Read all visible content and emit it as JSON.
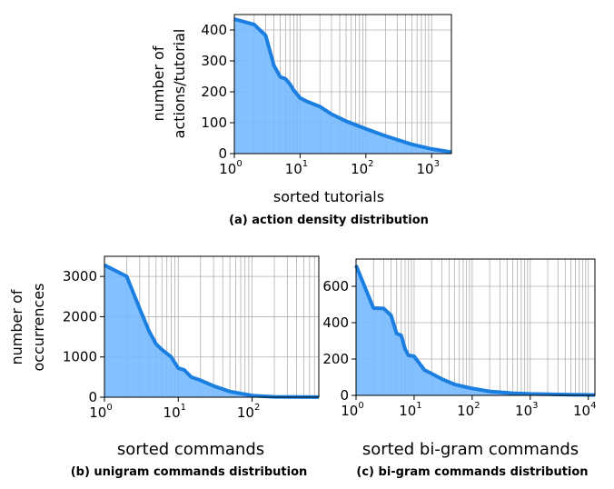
{
  "chart_data": [
    {
      "type": "area",
      "xscale": "log",
      "xlabel": "sorted tutorials",
      "ylabel": [
        "number of",
        "actions/tutorial"
      ],
      "caption": "(a) action density distribution",
      "xlim": [
        1,
        2000
      ],
      "ylim": [
        0,
        450
      ],
      "xticks": [
        {
          "base": "10",
          "exp": "0",
          "value": 1
        },
        {
          "base": "10",
          "exp": "1",
          "value": 10
        },
        {
          "base": "10",
          "exp": "2",
          "value": 100
        },
        {
          "base": "10",
          "exp": "3",
          "value": 1000
        }
      ],
      "yticks": [
        0,
        100,
        200,
        300,
        400
      ],
      "grid": true,
      "line_color": "#1a7fe0",
      "fill_color": "#74b9ff",
      "x": [
        1,
        2,
        3,
        4,
        5,
        6,
        7,
        8,
        10,
        13,
        20,
        30,
        50,
        100,
        200,
        500,
        1000,
        2000
      ],
      "y": [
        435,
        418,
        382,
        285,
        248,
        242,
        225,
        205,
        180,
        168,
        152,
        128,
        105,
        80,
        57,
        30,
        15,
        5
      ]
    },
    {
      "type": "area",
      "xscale": "log",
      "xlabel": "sorted commands",
      "ylabel": [
        "number of",
        "occurrences"
      ],
      "caption": "(b) unigram commands distribution",
      "xlim": [
        1,
        800
      ],
      "ylim": [
        0,
        3500
      ],
      "xticks": [
        {
          "base": "10",
          "exp": "0",
          "value": 1
        },
        {
          "base": "10",
          "exp": "1",
          "value": 10
        },
        {
          "base": "10",
          "exp": "2",
          "value": 100
        }
      ],
      "yticks": [
        0,
        1000,
        2000,
        3000
      ],
      "grid": true,
      "line_color": "#1a7fe0",
      "fill_color": "#74b9ff",
      "x": [
        1,
        2,
        3,
        4,
        5,
        6,
        8,
        10,
        12,
        15,
        20,
        30,
        50,
        100,
        200,
        400,
        800
      ],
      "y": [
        3280,
        3000,
        2200,
        1650,
        1320,
        1180,
        1000,
        720,
        680,
        500,
        420,
        280,
        140,
        40,
        10,
        5,
        2
      ]
    },
    {
      "type": "area",
      "xscale": "log",
      "xlabel": "sorted bi-gram commands",
      "ylabel": [],
      "caption": "(c) bi-gram commands distribution",
      "xlim": [
        1,
        13000
      ],
      "ylim": [
        0,
        750
      ],
      "xticks": [
        {
          "base": "10",
          "exp": "0",
          "value": 1
        },
        {
          "base": "10",
          "exp": "1",
          "value": 10
        },
        {
          "base": "10",
          "exp": "2",
          "value": 100
        },
        {
          "base": "10",
          "exp": "3",
          "value": 1000
        },
        {
          "base": "10",
          "exp": "4",
          "value": 10000
        }
      ],
      "yticks": [
        0,
        200,
        400,
        600
      ],
      "grid": true,
      "line_color": "#1a7fe0",
      "fill_color": "#74b9ff",
      "x": [
        1,
        2,
        3,
        4,
        5,
        6,
        7,
        8,
        10,
        15,
        20,
        30,
        50,
        100,
        200,
        500,
        1000,
        5000,
        13000
      ],
      "y": [
        715,
        480,
        478,
        440,
        340,
        330,
        255,
        220,
        215,
        140,
        120,
        90,
        60,
        38,
        22,
        12,
        8,
        4,
        2
      ]
    }
  ]
}
